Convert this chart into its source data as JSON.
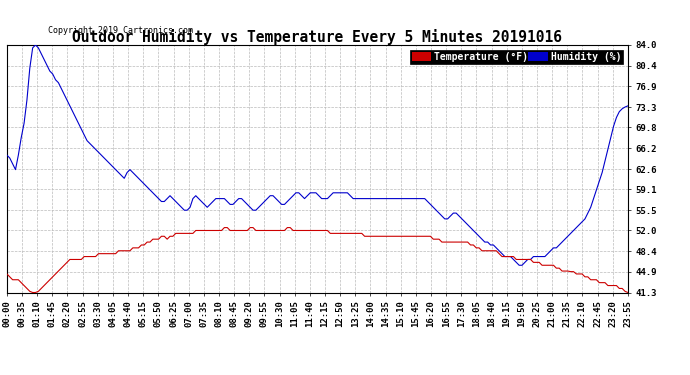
{
  "title": "Outdoor Humidity vs Temperature Every 5 Minutes 20191016",
  "copyright": "Copyright 2019 Cartronics.com",
  "legend_temp_label": "Temperature (°F)",
  "legend_hum_label": "Humidity (%)",
  "temp_color": "#cc0000",
  "hum_color": "#0000cc",
  "temp_legend_bg": "#cc0000",
  "hum_legend_bg": "#0000cc",
  "ylim": [
    41.3,
    84.0
  ],
  "yticks": [
    41.3,
    44.9,
    48.4,
    52.0,
    55.5,
    59.1,
    62.6,
    66.2,
    69.8,
    73.3,
    76.9,
    80.4,
    84.0
  ],
  "background_color": "#ffffff",
  "grid_color": "#bbbbbb",
  "title_fontsize": 10.5,
  "tick_fontsize": 6.5,
  "xtick_labels": [
    "00:00",
    "00:35",
    "01:10",
    "01:45",
    "02:20",
    "02:55",
    "03:30",
    "04:05",
    "04:40",
    "05:15",
    "05:50",
    "06:25",
    "07:00",
    "07:35",
    "08:10",
    "08:45",
    "09:20",
    "09:55",
    "10:30",
    "11:05",
    "11:40",
    "12:15",
    "12:50",
    "13:25",
    "14:00",
    "14:35",
    "15:10",
    "15:45",
    "16:20",
    "16:55",
    "17:30",
    "18:05",
    "18:40",
    "19:15",
    "19:50",
    "20:25",
    "21:00",
    "21:35",
    "22:10",
    "22:45",
    "23:20",
    "23:55"
  ],
  "humidity_data": [
    65.0,
    64.5,
    63.5,
    62.5,
    65.0,
    68.0,
    70.5,
    74.5,
    80.0,
    83.5,
    84.0,
    83.5,
    82.5,
    81.5,
    80.5,
    79.5,
    79.0,
    78.0,
    77.5,
    76.5,
    75.5,
    74.5,
    73.5,
    72.5,
    71.5,
    70.5,
    69.5,
    68.5,
    67.5,
    67.0,
    66.5,
    66.0,
    65.5,
    65.0,
    64.5,
    64.0,
    63.5,
    63.0,
    62.5,
    62.0,
    61.5,
    61.0,
    62.0,
    62.5,
    62.0,
    61.5,
    61.0,
    60.5,
    60.0,
    59.5,
    59.0,
    58.5,
    58.0,
    57.5,
    57.0,
    57.0,
    57.5,
    58.0,
    57.5,
    57.0,
    56.5,
    56.0,
    55.5,
    55.5,
    56.0,
    57.5,
    58.0,
    57.5,
    57.0,
    56.5,
    56.0,
    56.5,
    57.0,
    57.5,
    57.5,
    57.5,
    57.5,
    57.0,
    56.5,
    56.5,
    57.0,
    57.5,
    57.5,
    57.0,
    56.5,
    56.0,
    55.5,
    55.5,
    56.0,
    56.5,
    57.0,
    57.5,
    58.0,
    58.0,
    57.5,
    57.0,
    56.5,
    56.5,
    57.0,
    57.5,
    58.0,
    58.5,
    58.5,
    58.0,
    57.5,
    58.0,
    58.5,
    58.5,
    58.5,
    58.0,
    57.5,
    57.5,
    57.5,
    58.0,
    58.5,
    58.5,
    58.5,
    58.5,
    58.5,
    58.5,
    58.0,
    57.5,
    57.5,
    57.5,
    57.5,
    57.5,
    57.5,
    57.5,
    57.5,
    57.5,
    57.5,
    57.5,
    57.5,
    57.5,
    57.5,
    57.5,
    57.5,
    57.5,
    57.5,
    57.5,
    57.5,
    57.5,
    57.5,
    57.5,
    57.5,
    57.5,
    57.5,
    57.0,
    56.5,
    56.0,
    55.5,
    55.0,
    54.5,
    54.0,
    54.0,
    54.5,
    55.0,
    55.0,
    54.5,
    54.0,
    53.5,
    53.0,
    52.5,
    52.0,
    51.5,
    51.0,
    50.5,
    50.0,
    50.0,
    49.5,
    49.5,
    49.0,
    48.5,
    48.0,
    47.5,
    47.5,
    47.5,
    47.0,
    46.5,
    46.0,
    46.0,
    46.5,
    47.0,
    47.0,
    47.5,
    47.5,
    47.5,
    47.5,
    47.5,
    48.0,
    48.5,
    49.0,
    49.0,
    49.5,
    50.0,
    50.5,
    51.0,
    51.5,
    52.0,
    52.5,
    53.0,
    53.5,
    54.0,
    55.0,
    56.0,
    57.5,
    59.0,
    60.5,
    62.0,
    64.0,
    66.0,
    68.0,
    70.0,
    71.5,
    72.5,
    73.0,
    73.3,
    73.5
  ],
  "temperature_data": [
    44.5,
    44.0,
    43.5,
    43.5,
    43.5,
    43.0,
    42.5,
    42.0,
    41.5,
    41.3,
    41.3,
    41.5,
    42.0,
    42.5,
    43.0,
    43.5,
    44.0,
    44.5,
    45.0,
    45.5,
    46.0,
    46.5,
    47.0,
    47.0,
    47.0,
    47.0,
    47.0,
    47.5,
    47.5,
    47.5,
    47.5,
    47.5,
    48.0,
    48.0,
    48.0,
    48.0,
    48.0,
    48.0,
    48.0,
    48.5,
    48.5,
    48.5,
    48.5,
    48.5,
    49.0,
    49.0,
    49.0,
    49.5,
    49.5,
    50.0,
    50.0,
    50.5,
    50.5,
    50.5,
    51.0,
    51.0,
    50.5,
    51.0,
    51.0,
    51.5,
    51.5,
    51.5,
    51.5,
    51.5,
    51.5,
    51.5,
    52.0,
    52.0,
    52.0,
    52.0,
    52.0,
    52.0,
    52.0,
    52.0,
    52.0,
    52.0,
    52.5,
    52.5,
    52.0,
    52.0,
    52.0,
    52.0,
    52.0,
    52.0,
    52.0,
    52.5,
    52.5,
    52.0,
    52.0,
    52.0,
    52.0,
    52.0,
    52.0,
    52.0,
    52.0,
    52.0,
    52.0,
    52.0,
    52.5,
    52.5,
    52.0,
    52.0,
    52.0,
    52.0,
    52.0,
    52.0,
    52.0,
    52.0,
    52.0,
    52.0,
    52.0,
    52.0,
    52.0,
    51.5,
    51.5,
    51.5,
    51.5,
    51.5,
    51.5,
    51.5,
    51.5,
    51.5,
    51.5,
    51.5,
    51.5,
    51.0,
    51.0,
    51.0,
    51.0,
    51.0,
    51.0,
    51.0,
    51.0,
    51.0,
    51.0,
    51.0,
    51.0,
    51.0,
    51.0,
    51.0,
    51.0,
    51.0,
    51.0,
    51.0,
    51.0,
    51.0,
    51.0,
    51.0,
    51.0,
    50.5,
    50.5,
    50.5,
    50.0,
    50.0,
    50.0,
    50.0,
    50.0,
    50.0,
    50.0,
    50.0,
    50.0,
    50.0,
    49.5,
    49.5,
    49.0,
    49.0,
    48.5,
    48.5,
    48.5,
    48.5,
    48.5,
    48.5,
    48.0,
    47.5,
    47.5,
    47.5,
    47.5,
    47.5,
    47.0,
    47.0,
    47.0,
    47.0,
    47.0,
    47.0,
    46.5,
    46.5,
    46.5,
    46.0,
    46.0,
    46.0,
    46.0,
    46.0,
    45.5,
    45.5,
    45.0,
    45.0,
    45.0,
    44.9,
    44.9,
    44.5,
    44.5,
    44.5,
    44.0,
    44.0,
    43.5,
    43.5,
    43.5,
    43.0,
    43.0,
    43.0,
    42.5,
    42.5,
    42.5,
    42.5,
    42.0,
    42.0,
    41.5,
    41.3
  ]
}
